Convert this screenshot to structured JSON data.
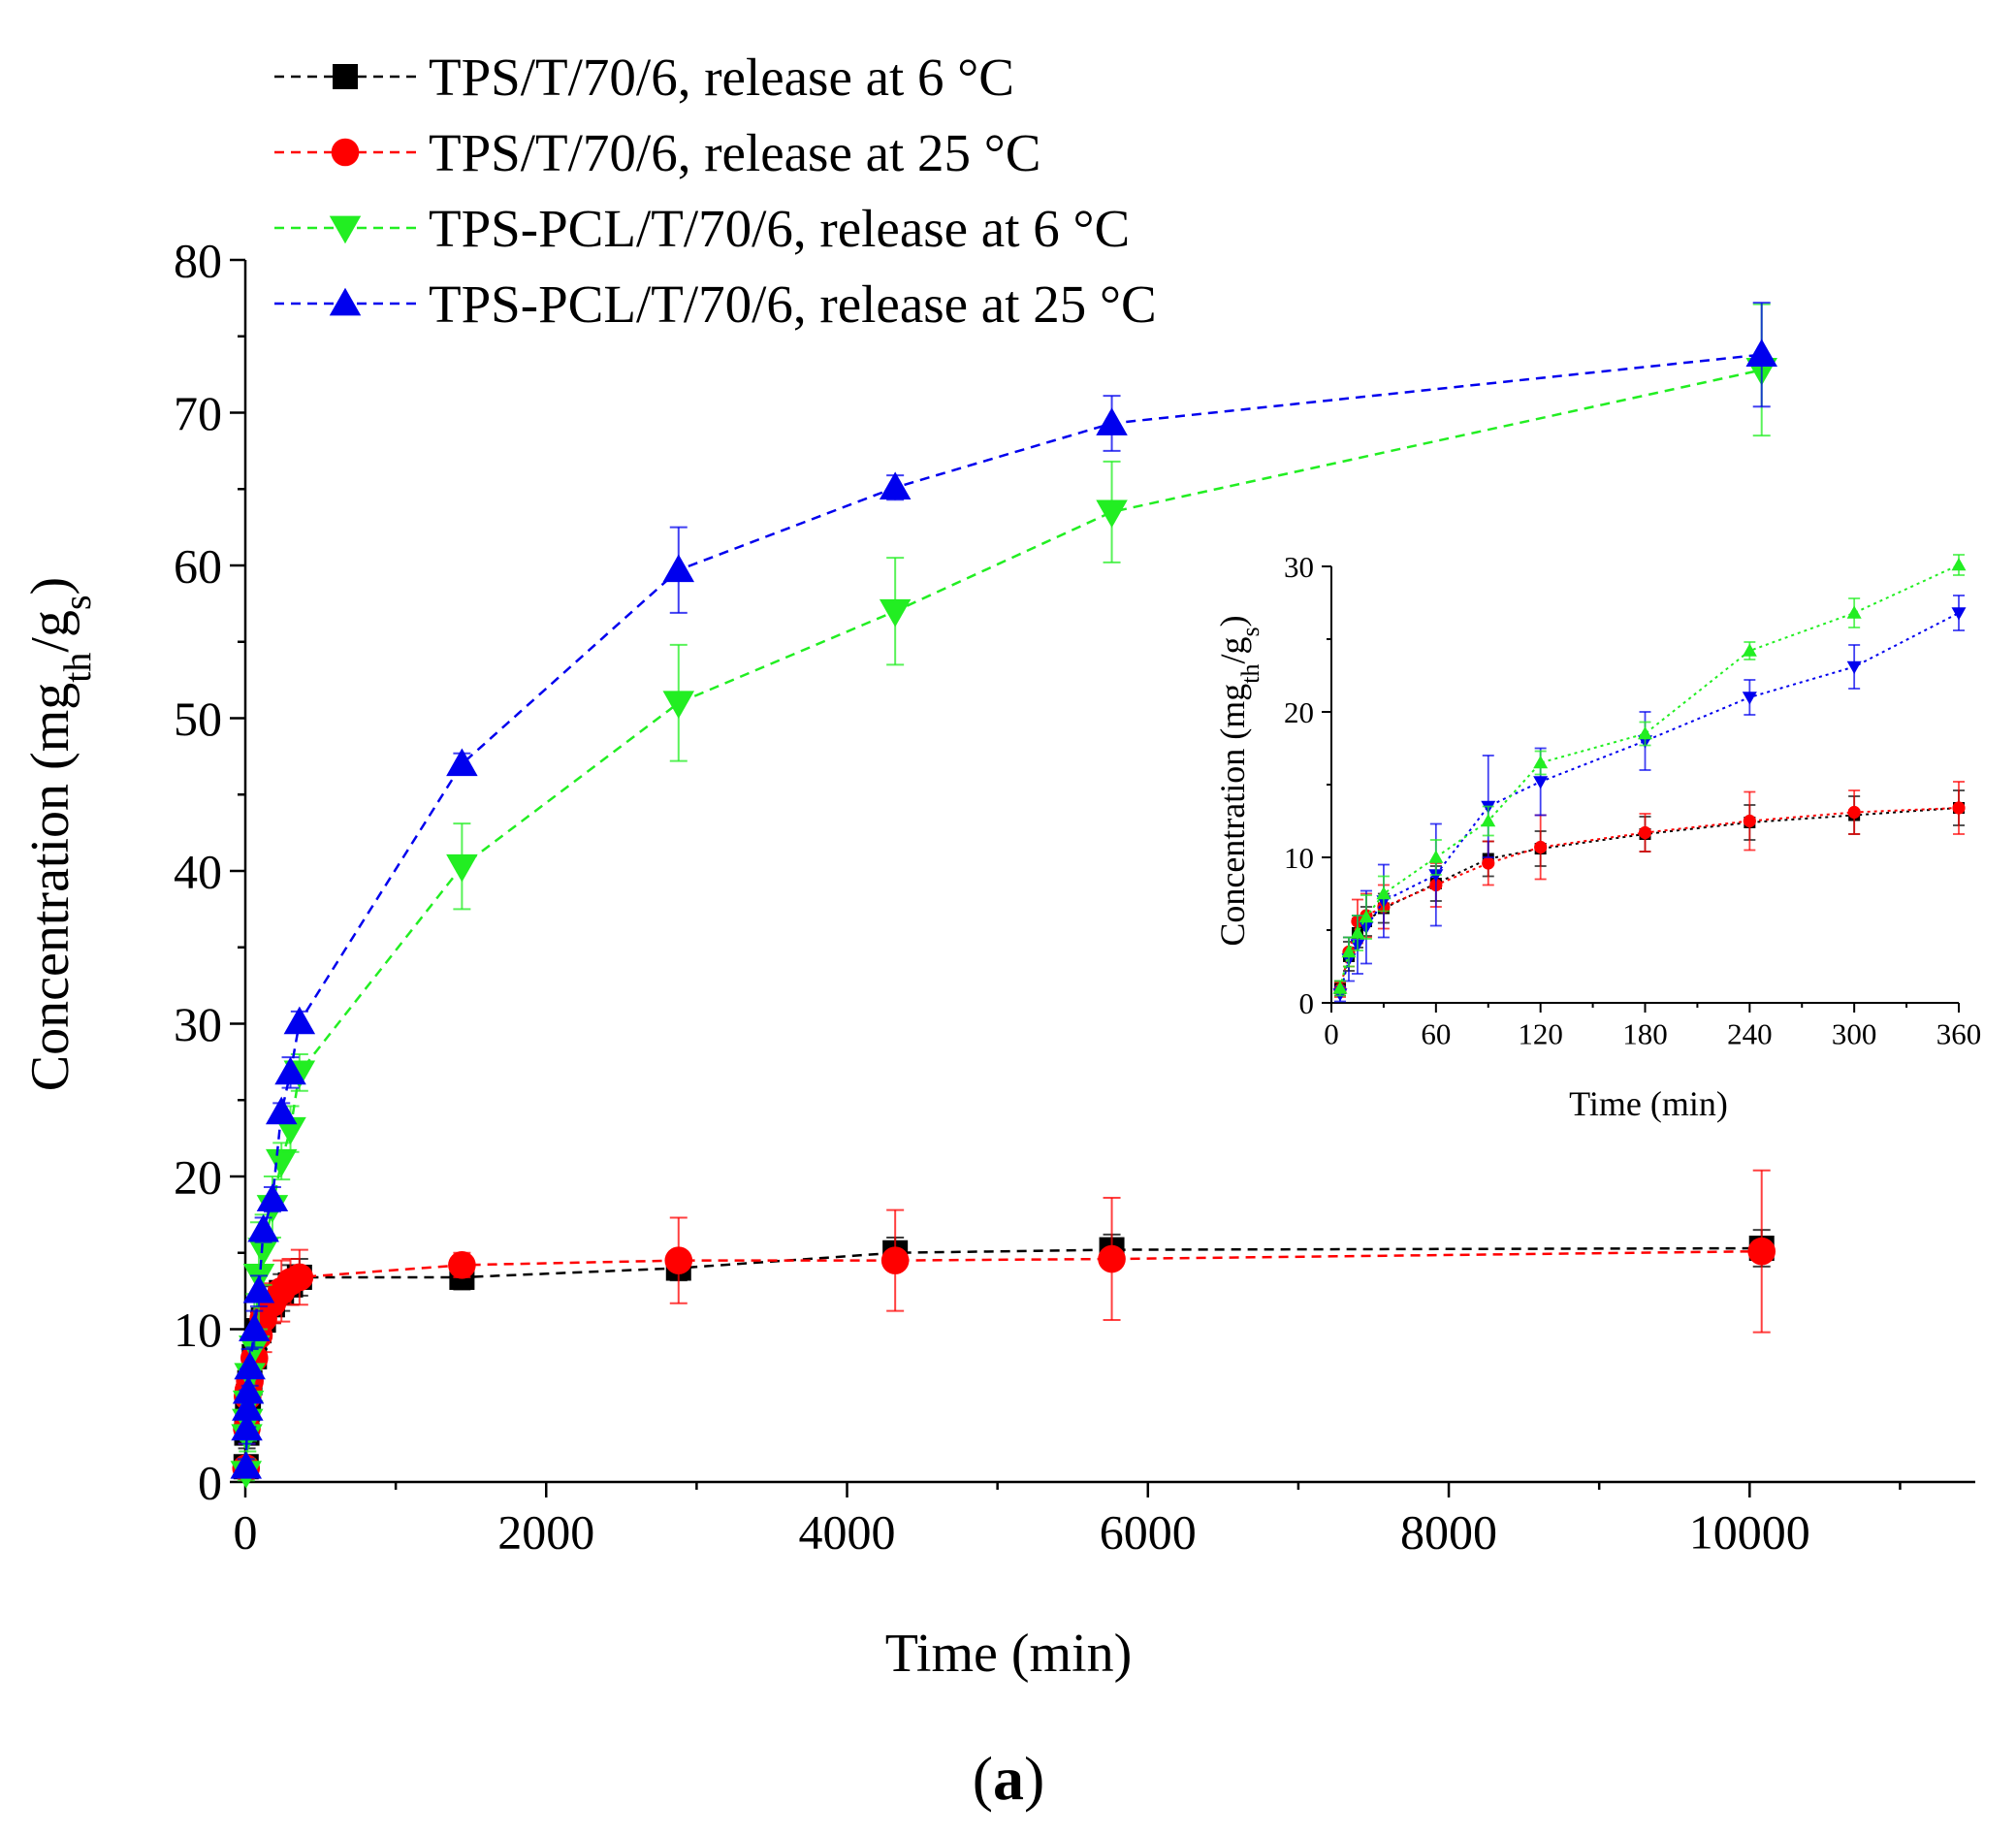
{
  "chart_data": [
    {
      "type": "scatter",
      "name": "main",
      "xlabel": "Time (min)",
      "ylabel_main": "Concentration (mg",
      "ylabel_sub1": "th",
      "ylabel_mid": "/g",
      "ylabel_sub2": "s",
      "ylabel_end": ")",
      "xlim": [
        0,
        11500
      ],
      "ylim": [
        0,
        80
      ],
      "xticks": [
        0,
        2000,
        4000,
        6000,
        8000,
        10000
      ],
      "yticks": [
        0,
        10,
        20,
        30,
        40,
        50,
        60,
        70,
        80
      ],
      "legend_position": "top-left",
      "series": [
        {
          "name": "TPS/T/70/6, release at 6 °C",
          "color": "#000000",
          "marker": "square",
          "x": [
            5,
            10,
            15,
            20,
            30,
            60,
            90,
            120,
            180,
            240,
            300,
            360,
            1440,
            2880,
            4320,
            5760,
            10080
          ],
          "y": [
            1.0,
            3.2,
            4.8,
            5.6,
            6.5,
            8.2,
            9.9,
            10.6,
            11.6,
            12.4,
            12.9,
            13.4,
            13.4,
            14.0,
            15.0,
            15.2,
            15.3
          ],
          "err": [
            0.5,
            1.0,
            1.0,
            1.0,
            1.0,
            1.2,
            1.2,
            1.2,
            1.2,
            1.2,
            1.3,
            1.2,
            0.8,
            0.8,
            1.0,
            1.0,
            1.2
          ]
        },
        {
          "name": "TPS/T/70/6, release at 25 °C",
          "color": "#ff0000",
          "marker": "circle",
          "x": [
            5,
            10,
            15,
            20,
            30,
            60,
            90,
            120,
            180,
            240,
            300,
            360,
            1440,
            2880,
            4320,
            5760,
            10080
          ],
          "y": [
            0.9,
            3.5,
            5.6,
            6.0,
            6.6,
            8.1,
            9.6,
            10.7,
            11.7,
            12.5,
            13.1,
            13.4,
            14.2,
            14.5,
            14.5,
            14.6,
            15.1
          ],
          "err": [
            0.5,
            1.0,
            1.5,
            1.5,
            1.5,
            1.5,
            1.5,
            2.2,
            1.3,
            2.0,
            1.5,
            1.8,
            0.8,
            2.8,
            3.3,
            4.0,
            5.3
          ]
        },
        {
          "name": "TPS-PCL/T/70/6, release at 6 °C",
          "color": "#22ee22",
          "marker": "triangle-down",
          "x": [
            5,
            10,
            15,
            20,
            30,
            60,
            90,
            120,
            180,
            240,
            300,
            360,
            1440,
            2880,
            4320,
            5760,
            10080
          ],
          "y": [
            0.6,
            3.0,
            4.0,
            5.2,
            7.0,
            8.8,
            13.5,
            15.2,
            18.0,
            21.0,
            23.1,
            26.8,
            40.3,
            51.0,
            57.0,
            63.5,
            72.8
          ],
          "err": [
            0.5,
            1.5,
            2.0,
            2.5,
            2.5,
            3.5,
            3.5,
            2.3,
            2.0,
            1.2,
            1.5,
            1.2,
            2.8,
            3.8,
            3.5,
            3.3,
            4.3
          ]
        },
        {
          "name": "TPS-PCL/T/70/6, release at 25 °C",
          "color": "#0000ee",
          "marker": "triangle-up",
          "x": [
            5,
            10,
            15,
            20,
            30,
            60,
            90,
            120,
            180,
            240,
            300,
            360,
            1440,
            2880,
            4320,
            5760,
            10080
          ],
          "y": [
            1.0,
            3.5,
            4.8,
            5.9,
            7.5,
            10.0,
            12.5,
            16.5,
            18.5,
            24.2,
            26.8,
            30.1,
            47.0,
            59.7,
            65.1,
            69.3,
            73.8
          ],
          "err": [
            0.5,
            1.0,
            1.2,
            1.5,
            1.2,
            1.2,
            1.0,
            0.8,
            0.8,
            0.6,
            1.0,
            0.7,
            0.7,
            2.8,
            0.8,
            1.8,
            3.4
          ]
        }
      ]
    },
    {
      "type": "scatter",
      "name": "inset",
      "xlabel": "Time (min)",
      "ylabel_main": "Concentration (mg",
      "ylabel_sub1": "th",
      "ylabel_mid": "/g",
      "ylabel_sub2": "s",
      "ylabel_end": ")",
      "xlim": [
        0,
        360
      ],
      "ylim": [
        0,
        30
      ],
      "xticks": [
        0,
        60,
        120,
        180,
        240,
        300,
        360
      ],
      "yticks": [
        0,
        10,
        20,
        30
      ],
      "series": [
        {
          "name": "TPS/T/70/6, release at 6 °C",
          "color": "#000000",
          "marker": "square",
          "x": [
            5,
            10,
            15,
            20,
            30,
            60,
            90,
            120,
            180,
            240,
            300,
            360
          ],
          "y": [
            1.0,
            3.2,
            4.8,
            5.6,
            6.5,
            8.2,
            9.9,
            10.6,
            11.6,
            12.4,
            12.9,
            13.4
          ],
          "err": [
            0.5,
            1.0,
            1.0,
            1.0,
            1.0,
            1.2,
            1.2,
            1.2,
            1.2,
            1.2,
            1.3,
            1.2
          ]
        },
        {
          "name": "TPS/T/70/6, release at 25 °C",
          "color": "#ff0000",
          "marker": "circle",
          "x": [
            5,
            10,
            15,
            20,
            30,
            60,
            90,
            120,
            180,
            240,
            300,
            360
          ],
          "y": [
            0.9,
            3.5,
            5.6,
            6.0,
            6.6,
            8.1,
            9.6,
            10.7,
            11.7,
            12.5,
            13.1,
            13.4
          ],
          "err": [
            0.5,
            1.0,
            1.5,
            1.5,
            1.5,
            1.5,
            1.5,
            2.2,
            1.3,
            2.0,
            1.5,
            1.8
          ]
        },
        {
          "name": "TPS-PCL/T/70/6, release at 6 °C",
          "color": "#0000ee",
          "marker": "triangle-down",
          "x": [
            5,
            10,
            15,
            20,
            30,
            60,
            90,
            120,
            180,
            240,
            300,
            360
          ],
          "y": [
            0.6,
            3.0,
            4.0,
            5.2,
            7.0,
            8.8,
            13.5,
            15.2,
            18.0,
            21.0,
            23.1,
            26.8
          ],
          "err": [
            0.5,
            1.5,
            2.0,
            2.5,
            2.5,
            3.5,
            3.5,
            2.3,
            2.0,
            1.2,
            1.5,
            1.2
          ]
        },
        {
          "name": "TPS-PCL/T/70/6, release at 25 °C",
          "color": "#22ee22",
          "marker": "triangle-up",
          "x": [
            5,
            10,
            15,
            20,
            30,
            60,
            90,
            120,
            180,
            240,
            300,
            360
          ],
          "y": [
            1.0,
            3.5,
            4.8,
            5.9,
            7.5,
            10.0,
            12.5,
            16.5,
            18.5,
            24.2,
            26.8,
            30.1
          ],
          "err": [
            0.5,
            1.0,
            1.2,
            1.5,
            1.2,
            1.2,
            1.0,
            0.8,
            0.8,
            0.6,
            1.0,
            0.7
          ]
        }
      ]
    }
  ],
  "panel_label": "a",
  "panel_open": "(",
  "panel_close": ")"
}
